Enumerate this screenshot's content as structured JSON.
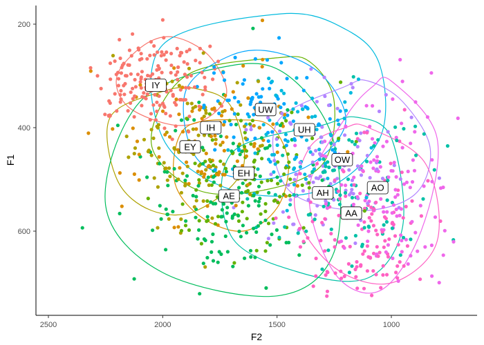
{
  "chart_data": {
    "type": "scatter",
    "title": "",
    "xlabel": "F2",
    "ylabel": "F1",
    "x_reversed": true,
    "y_reversed": true,
    "xlim": [
      2560,
      680
    ],
    "ylim": [
      160,
      755
    ],
    "x_ticks": [
      2500,
      2000,
      1500,
      1000
    ],
    "y_ticks": [
      200,
      400,
      600
    ],
    "grid": false,
    "legend": "none",
    "series": [
      {
        "label": "IY",
        "color": "#F8766D",
        "center": [
          2040,
          310
        ],
        "spread": [
          130,
          45
        ],
        "n": 170,
        "label_pos": [
          2030,
          318
        ],
        "ellipse": [
          [
            2080,
            240
          ],
          [
            2200,
            300
          ],
          [
            2150,
            360
          ],
          [
            1950,
            395
          ],
          [
            1800,
            380
          ],
          [
            1720,
            330
          ],
          [
            1800,
            260
          ],
          [
            1950,
            225
          ]
        ]
      },
      {
        "label": "IH",
        "color": "#DB8E00",
        "center": [
          1770,
          430
        ],
        "spread": [
          200,
          70
        ],
        "n": 100,
        "label_pos": [
          1790,
          400
        ],
        "ellipse": [
          [
            1650,
            385
          ],
          [
            1900,
            400
          ],
          [
            1950,
            500
          ],
          [
            1840,
            570
          ],
          [
            1650,
            600
          ],
          [
            1500,
            555
          ],
          [
            1450,
            470
          ],
          [
            1520,
            400
          ]
        ]
      },
      {
        "label": "EY",
        "color": "#AEA200",
        "center": [
          1880,
          440
        ],
        "spread": [
          150,
          70
        ],
        "n": 100,
        "label_pos": [
          1880,
          437
        ],
        "ellipse": [
          [
            2000,
            330
          ],
          [
            2230,
            380
          ],
          [
            2200,
            500
          ],
          [
            2050,
            560
          ],
          [
            1850,
            560
          ],
          [
            1650,
            480
          ],
          [
            1700,
            360
          ],
          [
            1850,
            325
          ]
        ]
      },
      {
        "label": "EH",
        "color": "#64B200",
        "center": [
          1630,
          490
        ],
        "spread": [
          180,
          70
        ],
        "n": 110,
        "label_pos": [
          1645,
          488
        ],
        "ellipse": [
          [
            1500,
            265
          ],
          [
            1900,
            300
          ],
          [
            2050,
            430
          ],
          [
            1850,
            520
          ],
          [
            1550,
            520
          ],
          [
            1300,
            470
          ],
          [
            1250,
            350
          ],
          [
            1350,
            275
          ]
        ]
      },
      {
        "label": "AE",
        "color": "#00BD5C",
        "center": [
          1720,
          530
        ],
        "spread": [
          200,
          80
        ],
        "n": 140,
        "label_pos": [
          1710,
          532
        ],
        "ellipse": [
          [
            1700,
            280
          ],
          [
            2100,
            350
          ],
          [
            2250,
            550
          ],
          [
            2000,
            680
          ],
          [
            1500,
            725
          ],
          [
            1250,
            640
          ],
          [
            1250,
            430
          ],
          [
            1450,
            300
          ]
        ]
      },
      {
        "label": "AH",
        "color": "#00C1A7",
        "center": [
          1200,
          530
        ],
        "spread": [
          180,
          80
        ],
        "n": 100,
        "label_pos": [
          1300,
          526
        ],
        "ellipse": [
          [
            1300,
            395
          ],
          [
            1700,
            450
          ],
          [
            1700,
            610
          ],
          [
            1400,
            680
          ],
          [
            1100,
            690
          ],
          [
            950,
            590
          ],
          [
            1000,
            420
          ],
          [
            1150,
            380
          ]
        ]
      },
      {
        "label": "UH",
        "color": "#00BADE",
        "center": [
          1360,
          420
        ],
        "spread": [
          150,
          60
        ],
        "n": 80,
        "label_pos": [
          1380,
          404
        ],
        "ellipse": [
          [
            1480,
            180
          ],
          [
            2000,
            240
          ],
          [
            2000,
            420
          ],
          [
            1700,
            520
          ],
          [
            1300,
            520
          ],
          [
            1050,
            420
          ],
          [
            1050,
            280
          ],
          [
            1200,
            210
          ]
        ]
      },
      {
        "label": "UW",
        "color": "#00A6FF",
        "center": [
          1560,
          360
        ],
        "spread": [
          150,
          60
        ],
        "n": 80,
        "label_pos": [
          1550,
          365
        ],
        "ellipse": [
          [
            1700,
            260
          ],
          [
            1900,
            330
          ],
          [
            1850,
            460
          ],
          [
            1600,
            500
          ],
          [
            1350,
            470
          ],
          [
            1200,
            390
          ],
          [
            1300,
            300
          ],
          [
            1500,
            255
          ]
        ]
      },
      {
        "label": "OW",
        "color": "#B385FF",
        "center": [
          1270,
          470
        ],
        "spread": [
          160,
          70
        ],
        "n": 110,
        "label_pos": [
          1215,
          462
        ],
        "ellipse": [
          [
            1200,
            320
          ],
          [
            1500,
            390
          ],
          [
            1450,
            520
          ],
          [
            1150,
            560
          ],
          [
            900,
            530
          ],
          [
            830,
            440
          ],
          [
            950,
            350
          ],
          [
            1100,
            310
          ]
        ]
      },
      {
        "label": "AO",
        "color": "#EF67EB",
        "center": [
          1030,
          520
        ],
        "spread": [
          150,
          80
        ],
        "n": 120,
        "label_pos": [
          1060,
          516
        ],
        "ellipse": [
          [
            1000,
            310
          ],
          [
            800,
            420
          ],
          [
            870,
            600
          ],
          [
            1050,
            715
          ],
          [
            1250,
            680
          ],
          [
            1360,
            520
          ],
          [
            1200,
            380
          ],
          [
            1080,
            320
          ]
        ]
      },
      {
        "label": "AA",
        "color": "#FF61C3",
        "center": [
          1120,
          600
        ],
        "spread": [
          140,
          80
        ],
        "n": 130,
        "label_pos": [
          1175,
          565
        ],
        "ellipse": [
          [
            1100,
            400
          ],
          [
            850,
            470
          ],
          [
            800,
            620
          ],
          [
            1000,
            700
          ],
          [
            1250,
            670
          ],
          [
            1420,
            560
          ],
          [
            1360,
            440
          ],
          [
            1200,
            400
          ]
        ]
      }
    ]
  }
}
